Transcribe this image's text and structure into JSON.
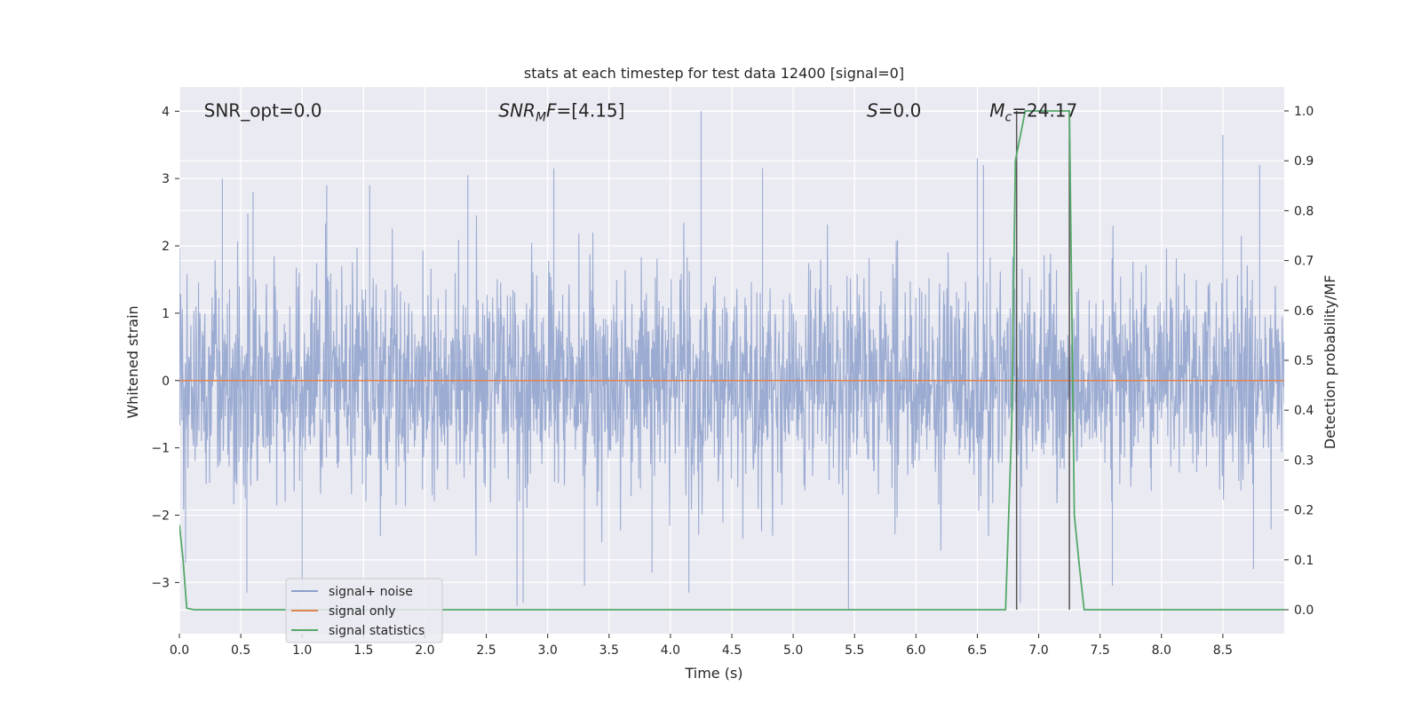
{
  "chart_data": {
    "type": "line",
    "title": "stats at each timestep for test data 12400 [signal=0]",
    "xlabel": "Time (s)",
    "ylabel": "Whitened strain",
    "y2label": "Detection probability/MF",
    "xlim": [
      0.0,
      9.0
    ],
    "ylim": [
      -3.76,
      4.36
    ],
    "y2lim": [
      -0.048,
      1.048
    ],
    "xticks": [
      0.0,
      0.5,
      1.0,
      1.5,
      2.0,
      2.5,
      3.0,
      3.5,
      4.0,
      4.5,
      5.0,
      5.5,
      6.0,
      6.5,
      7.0,
      7.5,
      8.0,
      8.5
    ],
    "xtick_labels": [
      "0.0",
      "0.5",
      "1.0",
      "1.5",
      "2.0",
      "2.5",
      "3.0",
      "3.5",
      "4.0",
      "4.5",
      "5.0",
      "5.5",
      "6.0",
      "6.5",
      "7.0",
      "7.5",
      "8.0",
      "8.5"
    ],
    "yticks": [
      4,
      3,
      2,
      1,
      0,
      -1,
      -2,
      -3
    ],
    "ytick_labels": [
      "4",
      "3",
      "2",
      "1",
      "0",
      "−1",
      "−2",
      "−3"
    ],
    "y2ticks": [
      1.0,
      0.9,
      0.8,
      0.7,
      0.6,
      0.5,
      0.4,
      0.3,
      0.2,
      0.1,
      0.0
    ],
    "y2tick_labels": [
      "1.0",
      "0.9",
      "0.8",
      "0.7",
      "0.6",
      "0.5",
      "0.4",
      "0.3",
      "0.2",
      "0.1",
      "0.0"
    ],
    "grid": true,
    "legend_position": "lower-left",
    "legend": [
      {
        "name": "signal+ noise",
        "color": "#8da0cb"
      },
      {
        "name": "signal only",
        "color": "#dd8452"
      },
      {
        "name": "signal statistics",
        "color": "#55a868"
      }
    ],
    "annotations": [
      {
        "text": "SNR_opt=0.0",
        "x": 0.2,
        "y": 4.0
      },
      {
        "text": "SNR_MF=[4.15]",
        "x": 2.6,
        "y": 4.0
      },
      {
        "text": "S=0.0",
        "x": 5.6,
        "y": 4.0
      },
      {
        "text": "M_c=24.17",
        "x": 6.6,
        "y": 4.0
      }
    ],
    "series": [
      {
        "name": "signal+ noise",
        "axis": "left",
        "color": "#8da0cb",
        "note_visual": "dense noise band roughly within [-2, 2] with spikes",
        "x_range": [
          0.0,
          9.0
        ],
        "typical_band": [
          -1.9,
          1.9
        ],
        "spikes": [
          {
            "x": 0.05,
            "y": -2.7
          },
          {
            "x": 0.35,
            "y": 3.0
          },
          {
            "x": 0.55,
            "y": -3.15
          },
          {
            "x": 0.6,
            "y": 2.8
          },
          {
            "x": 1.0,
            "y": -3.15
          },
          {
            "x": 1.2,
            "y": 2.9
          },
          {
            "x": 1.55,
            "y": 2.9
          },
          {
            "x": 2.35,
            "y": 3.05
          },
          {
            "x": 2.75,
            "y": -3.35
          },
          {
            "x": 2.8,
            "y": -3.3
          },
          {
            "x": 3.05,
            "y": 3.15
          },
          {
            "x": 3.3,
            "y": -3.05
          },
          {
            "x": 3.85,
            "y": -2.85
          },
          {
            "x": 4.15,
            "y": -3.15
          },
          {
            "x": 4.25,
            "y": 4.0
          },
          {
            "x": 4.75,
            "y": 3.15
          },
          {
            "x": 5.45,
            "y": -3.4
          },
          {
            "x": 6.5,
            "y": 3.3
          },
          {
            "x": 6.55,
            "y": 3.2
          },
          {
            "x": 6.85,
            "y": -3.3
          },
          {
            "x": 7.6,
            "y": -3.05
          },
          {
            "x": 8.5,
            "y": 3.65
          },
          {
            "x": 8.75,
            "y": -2.8
          },
          {
            "x": 8.8,
            "y": 3.2
          }
        ]
      },
      {
        "name": "signal only",
        "axis": "left",
        "color": "#dd8452",
        "x": [
          0.0,
          9.0
        ],
        "y": [
          0.0,
          0.0
        ]
      },
      {
        "name": "signal statistics",
        "axis": "right",
        "color": "#55a868",
        "x": [
          0.0,
          0.03,
          0.06,
          0.12,
          6.73,
          6.78,
          6.81,
          6.85,
          6.89,
          7.25,
          7.29,
          7.33,
          7.37,
          9.0
        ],
        "y": [
          0.17,
          0.1,
          0.003,
          0.0,
          0.0,
          0.37,
          0.9,
          0.95,
          1.0,
          1.0,
          0.19,
          0.09,
          0.0,
          0.0
        ]
      }
    ],
    "vlines": [
      {
        "x": 6.82,
        "axis": "right",
        "ymin": 0.0,
        "ymax": 1.0,
        "color": "#555555"
      },
      {
        "x": 7.25,
        "axis": "right",
        "ymin": 0.0,
        "ymax": 1.0,
        "color": "#555555"
      }
    ]
  }
}
